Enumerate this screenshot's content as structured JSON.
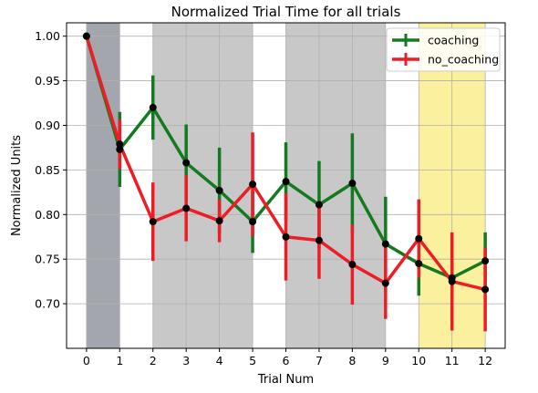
{
  "chart_data": {
    "type": "line",
    "title": "Normalized Trial Time for all trials",
    "xlabel": "Trial Num",
    "ylabel": "Normalized Units",
    "xlim": [
      -0.6,
      12.6
    ],
    "ylim": [
      0.65,
      1.015
    ],
    "x_ticks": [
      0,
      1,
      2,
      3,
      4,
      5,
      6,
      7,
      8,
      9,
      10,
      11,
      12
    ],
    "y_ticks": [
      0.7,
      0.75,
      0.8,
      0.85,
      0.9,
      0.95,
      1.0
    ],
    "y_tick_labels": [
      "0.70",
      "0.75",
      "0.80",
      "0.85",
      "0.90",
      "0.95",
      "1.00"
    ],
    "grid": true,
    "legend_position": "top-right",
    "shaded_regions": [
      {
        "x0": 0,
        "x1": 1,
        "color": "#a3a7ad"
      },
      {
        "x0": 2,
        "x1": 5,
        "color": "#c8c8c8"
      },
      {
        "x0": 6,
        "x1": 9,
        "color": "#c8c8c8"
      },
      {
        "x0": 10,
        "x1": 12,
        "color": "#fbf09d"
      }
    ],
    "series": [
      {
        "name": "coaching",
        "color": "#137a1f",
        "x": [
          0,
          1,
          2,
          3,
          4,
          5,
          6,
          7,
          8,
          9,
          10,
          11,
          12
        ],
        "y": [
          1.0,
          0.873,
          0.92,
          0.858,
          0.827,
          0.792,
          0.837,
          0.811,
          0.835,
          0.767,
          0.745,
          0.729,
          0.748
        ],
        "err": [
          0.0,
          0.042,
          0.036,
          0.043,
          0.048,
          0.035,
          0.044,
          0.049,
          0.056,
          0.053,
          0.036,
          0.022,
          0.032
        ]
      },
      {
        "name": "no_coaching",
        "color": "#ee1c25",
        "x": [
          0,
          1,
          2,
          3,
          4,
          5,
          6,
          7,
          8,
          9,
          10,
          11,
          12
        ],
        "y": [
          1.0,
          0.879,
          0.792,
          0.807,
          0.793,
          0.834,
          0.775,
          0.771,
          0.744,
          0.723,
          0.773,
          0.725,
          0.716
        ],
        "err": [
          0.0,
          0.028,
          0.044,
          0.037,
          0.024,
          0.058,
          0.049,
          0.043,
          0.045,
          0.04,
          0.044,
          0.055,
          0.047
        ]
      }
    ]
  }
}
